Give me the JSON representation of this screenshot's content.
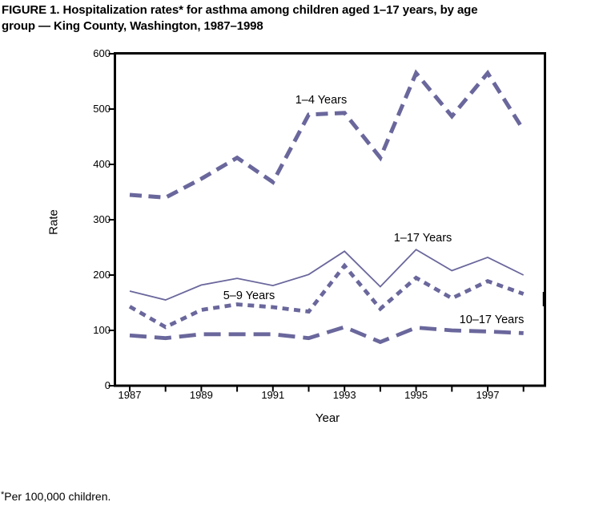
{
  "title": {
    "line1": "FIGURE 1. Hospitalization rates* for asthma among children aged 1–17 years, by age",
    "line2": "group — King County, Washington, 1987–1998"
  },
  "footnote": {
    "symbol": "*",
    "text": "Per 100,000 children."
  },
  "chart_data": {
    "type": "line",
    "title": "Hospitalization rates for asthma among children aged 1–17 years, by age group — King County, Washington, 1987–1998",
    "xlabel": "Year",
    "ylabel": "Rate",
    "x": [
      1987,
      1988,
      1989,
      1990,
      1991,
      1992,
      1993,
      1994,
      1995,
      1996,
      1997,
      1998
    ],
    "x_tick_labels": [
      "1987",
      "1989",
      "1991",
      "1993",
      "1995",
      "1997"
    ],
    "y_ticks": [
      0,
      100,
      200,
      300,
      400,
      500,
      600
    ],
    "ylim": [
      0,
      600
    ],
    "grid": false,
    "legend_position": "inline-labels",
    "line_color": "#6a679c",
    "axis_color": "#000000",
    "series": [
      {
        "name": "1–4 Years",
        "dash": "dashed",
        "values": [
          345,
          340,
          374,
          412,
          368,
          490,
          493,
          412,
          565,
          487,
          565,
          462
        ]
      },
      {
        "name": "1–17 Years",
        "dash": "solid",
        "values": [
          171,
          155,
          182,
          194,
          181,
          201,
          243,
          179,
          246,
          208,
          232,
          200
        ]
      },
      {
        "name": "5–9 Years",
        "dash": "short-dashed",
        "values": [
          143,
          106,
          137,
          147,
          142,
          134,
          217,
          139,
          195,
          158,
          189,
          166
        ]
      },
      {
        "name": "10–17 Years",
        "dash": "long-dashed",
        "values": [
          91,
          86,
          93,
          93,
          93,
          86,
          106,
          79,
          105,
          100,
          98,
          95
        ]
      }
    ]
  }
}
